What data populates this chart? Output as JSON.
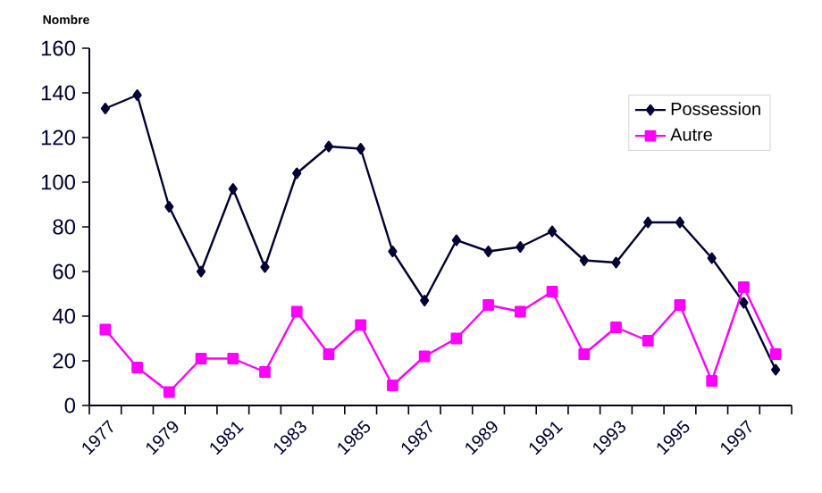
{
  "chart_data": {
    "type": "line",
    "ylabel": "Nombre",
    "categories": [
      "1977",
      null,
      "1979",
      null,
      "1981",
      null,
      "1983",
      null,
      "1985",
      null,
      "1987",
      null,
      "1989",
      null,
      "1991",
      null,
      "1993",
      null,
      "1995",
      null,
      "1997",
      null
    ],
    "series": [
      {
        "name": "Possession",
        "color": "#000033",
        "marker": "diamond",
        "values": [
          133,
          139,
          89,
          60,
          97,
          62,
          104,
          116,
          115,
          69,
          47,
          74,
          69,
          71,
          78,
          65,
          64,
          82,
          82,
          66,
          46,
          16
        ]
      },
      {
        "name": "Autre",
        "color": "#ff00ff",
        "marker": "square",
        "values": [
          34,
          17,
          6,
          21,
          21,
          15,
          42,
          23,
          36,
          9,
          22,
          30,
          45,
          42,
          51,
          23,
          35,
          29,
          45,
          11,
          53,
          23
        ]
      }
    ],
    "ylim": [
      0,
      160
    ],
    "yticks": [
      0,
      20,
      40,
      60,
      80,
      100,
      120,
      140,
      160
    ],
    "grid": false,
    "legend": "top right",
    "line_style": "solid"
  }
}
